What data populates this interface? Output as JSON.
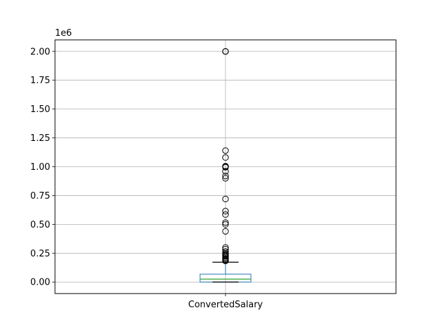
{
  "chart_data": {
    "type": "boxplot",
    "categories": [
      "ConvertedSalary"
    ],
    "scale_label": "1e6",
    "ylim": [
      -100000,
      2100000
    ],
    "y_ticks": [
      0,
      250000,
      500000,
      750000,
      1000000,
      1250000,
      1500000,
      1750000,
      2000000
    ],
    "y_tick_labels": [
      "0.00",
      "0.25",
      "0.50",
      "0.75",
      "1.00",
      "1.25",
      "1.50",
      "1.75",
      "2.00"
    ],
    "grid": true,
    "box": {
      "whisker_low": 0,
      "q1": 0,
      "median": 25000,
      "q3": 68000,
      "whisker_high": 172000
    },
    "outliers": [
      2000000,
      2000000,
      2000000,
      1140000,
      1080000,
      1005000,
      1000000,
      995000,
      960000,
      920000,
      900000,
      720000,
      615000,
      585000,
      515000,
      500000,
      440000,
      300000,
      285000,
      265000,
      250000,
      240000,
      232000,
      225000,
      215000,
      205000,
      197000,
      190000,
      183000
    ],
    "colors": {
      "box": "#1f77b4",
      "median": "#2ca02c",
      "whisker": "#000000",
      "grid": "#b0b0b0"
    }
  }
}
